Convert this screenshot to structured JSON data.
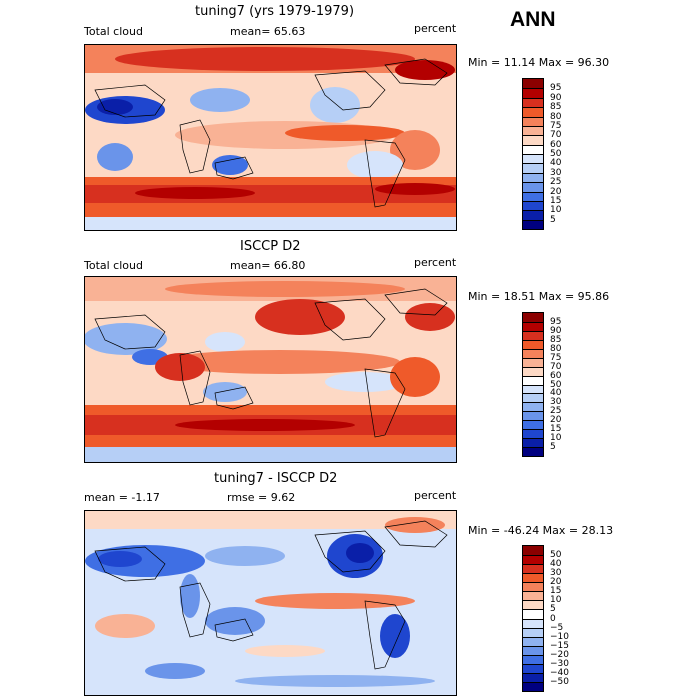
{
  "header": {
    "season": "ANN"
  },
  "panels": [
    {
      "id": "model",
      "title": "tuning7 (yrs 1979-1979)",
      "left_label": "Total cloud",
      "center_label": "mean=  65.63",
      "right_label": "percent",
      "minmax": "Min =  11.14 Max =  96.30",
      "colorbar": {
        "labels": [
          "95",
          "90",
          "85",
          "80",
          "75",
          "70",
          "60",
          "50",
          "40",
          "30",
          "25",
          "20",
          "15",
          "10",
          "5"
        ],
        "colors": [
          "#8b0000",
          "#b30000",
          "#d7301f",
          "#ef5a2a",
          "#f4825b",
          "#f9b295",
          "#fdd9c5",
          "#ffffff",
          "#d6e4fb",
          "#b6cff6",
          "#8fb2f0",
          "#6a94ea",
          "#3f6fe4",
          "#1f46cf",
          "#0a1fa8",
          "#000080"
        ]
      }
    },
    {
      "id": "obs",
      "title": "ISCCP D2",
      "left_label": "Total cloud",
      "center_label": "mean=  66.80",
      "right_label": "percent",
      "minmax": "Min =  18.51 Max =  95.86",
      "colorbar": {
        "labels": [
          "95",
          "90",
          "85",
          "80",
          "75",
          "70",
          "60",
          "50",
          "40",
          "30",
          "25",
          "20",
          "15",
          "10",
          "5"
        ],
        "colors": [
          "#8b0000",
          "#b30000",
          "#d7301f",
          "#ef5a2a",
          "#f4825b",
          "#f9b295",
          "#fdd9c5",
          "#ffffff",
          "#d6e4fb",
          "#b6cff6",
          "#8fb2f0",
          "#6a94ea",
          "#3f6fe4",
          "#1f46cf",
          "#0a1fa8",
          "#000080"
        ]
      }
    },
    {
      "id": "diff",
      "title": "tuning7 - ISCCP D2",
      "left_label": "mean =  -1.17",
      "center_label": "rmse =   9.62",
      "right_label": "percent",
      "minmax": "Min = -46.24 Max =  28.13",
      "colorbar": {
        "labels": [
          "50",
          "40",
          "30",
          "20",
          "15",
          "10",
          "5",
          "0",
          "−5",
          "−10",
          "−15",
          "−20",
          "−30",
          "−40",
          "−50"
        ],
        "colors": [
          "#8b0000",
          "#b30000",
          "#d7301f",
          "#ef5a2a",
          "#f4825b",
          "#f9b295",
          "#fdd9c5",
          "#ffffff",
          "#d6e4fb",
          "#b6cff6",
          "#8fb2f0",
          "#6a94ea",
          "#3f6fe4",
          "#1f46cf",
          "#0a1fa8",
          "#000080"
        ]
      }
    }
  ]
}
